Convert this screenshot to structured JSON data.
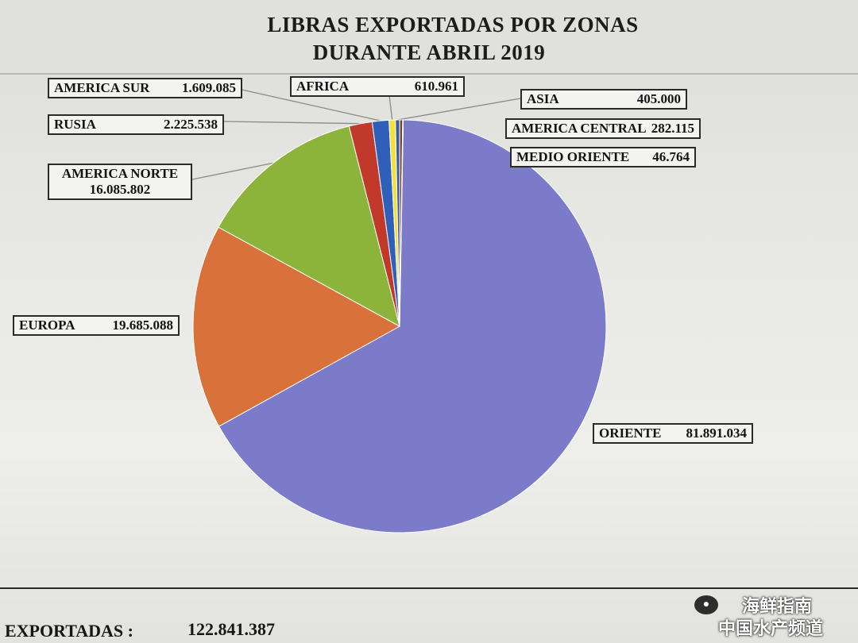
{
  "chart_data": {
    "type": "pie",
    "title": "LIBRAS EXPORTADAS POR ZONAS",
    "subtitle": "DURANTE ABRIL 2019",
    "start_angle_deg": 1,
    "direction": "clockwise",
    "slices": [
      {
        "label": "ORIENTE",
        "value": 81891034,
        "display": "81.891.034",
        "color": "#7b7bc9"
      },
      {
        "label": "EUROPA",
        "value": 19685088,
        "display": "19.685.088",
        "color": "#d9713a"
      },
      {
        "label": "AMERICA NORTE",
        "value": 16085802,
        "display": "16.085.802",
        "color": "#8db43a"
      },
      {
        "label": "RUSIA",
        "value": 2225538,
        "display": "2.225.538",
        "color": "#c0392b"
      },
      {
        "label": "AMERICA SUR",
        "value": 1609085,
        "display": "1.609.085",
        "color": "#2f5fb8"
      },
      {
        "label": "AFRICA",
        "value": 610961,
        "display": "610.961",
        "color": "#f2e13a"
      },
      {
        "label": "ASIA",
        "value": 405000,
        "display": "405.000",
        "color": "#3a5a9c"
      },
      {
        "label": "AMERICA CENTRAL",
        "value": 282115,
        "display": "282.115",
        "color": "#7a3e2b"
      },
      {
        "label": "MEDIO ORIENTE",
        "value": 46764,
        "display": "46.764",
        "color": "#2f6b3a"
      }
    ]
  },
  "footer": {
    "total_label": "EXPORTADAS :",
    "total_value": "122.841.387"
  },
  "watermark": {
    "line1": "海鲜指南",
    "line2": "中国水产频道",
    "icon": "wechat-icon"
  }
}
